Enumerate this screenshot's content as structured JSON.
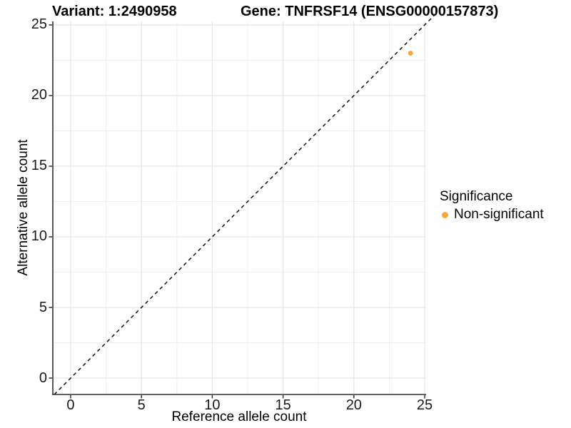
{
  "title": {
    "variant": "Variant: 1:2490958",
    "gene": "Gene: TNFRSF14 (ENSG00000157873)"
  },
  "chart_data": {
    "type": "scatter",
    "title": "Variant: 1:2490958   Gene: TNFRSF14 (ENSG00000157873)",
    "xlabel": "Reference allele count",
    "ylabel": "Alternative allele count",
    "xlim": [
      -1.26,
      25.1
    ],
    "ylim": [
      -1.16,
      25.25
    ],
    "x_ticks": [
      0,
      5,
      10,
      15,
      20,
      25
    ],
    "y_ticks": [
      0,
      5,
      10,
      15,
      20,
      25
    ],
    "grid": {
      "show": true,
      "major_every": 5,
      "minor_every": 2.5
    },
    "reference_line": {
      "type": "identity",
      "slope": 1,
      "intercept": 0,
      "style": "dashed",
      "color": "#111111"
    },
    "series": [
      {
        "name": "Non-significant",
        "color": "#FAA43A",
        "points": [
          {
            "x": 24,
            "y": 23
          }
        ]
      }
    ],
    "legend": {
      "title": "Significance",
      "position": "right",
      "entries": [
        {
          "label": "Non-significant",
          "color": "#FAA43A"
        }
      ]
    }
  },
  "colors": {
    "point": "#FAA43A",
    "grid_major": "#e3e3e3",
    "grid_minor": "#f1f1f1",
    "axis_line": "#2f2f2f",
    "tick_text": "#1a1a1a"
  }
}
